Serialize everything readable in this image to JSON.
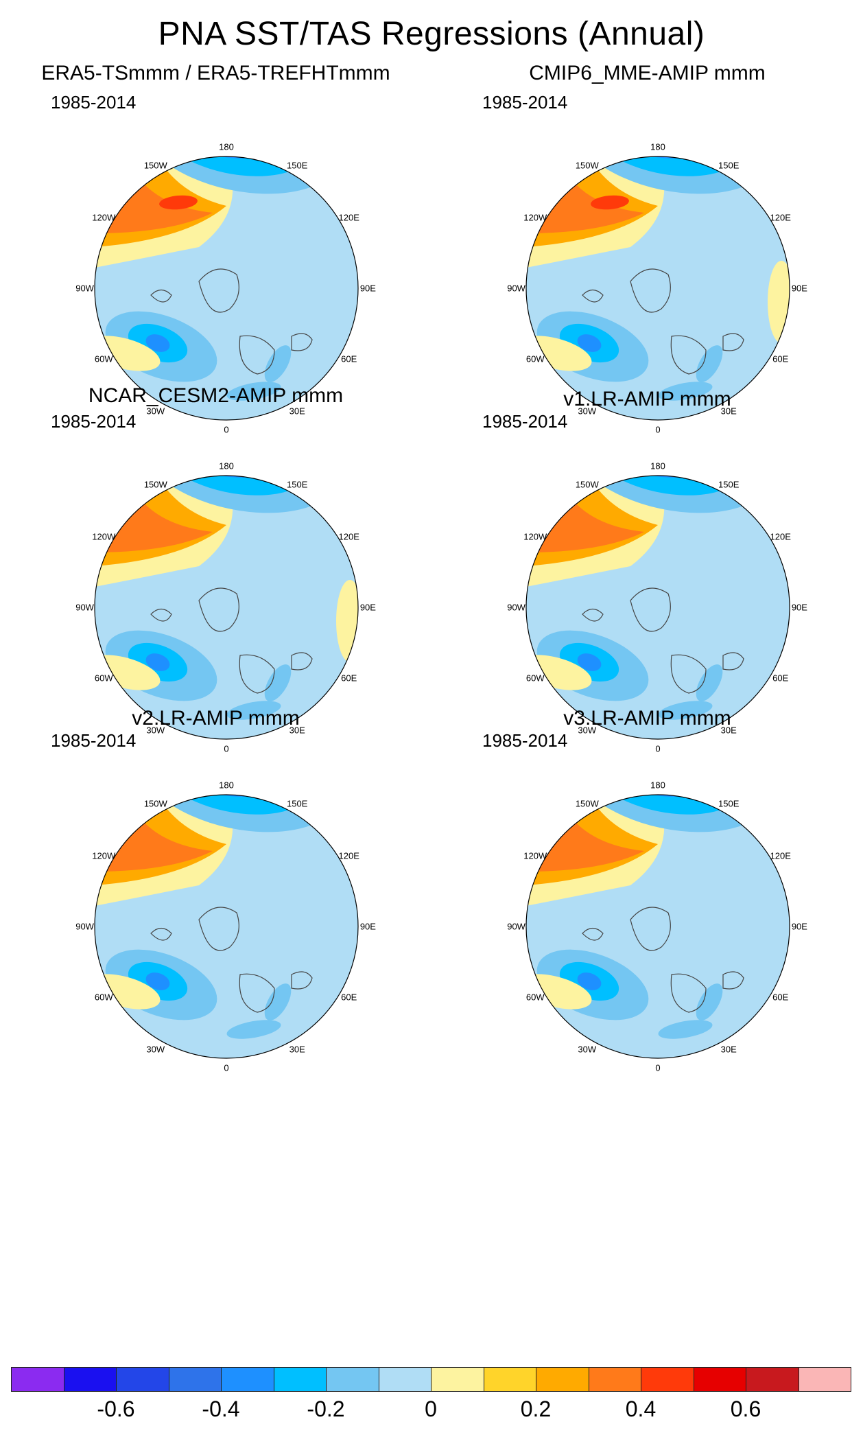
{
  "title": "PNA SST/TAS Regressions (Annual)",
  "panels": [
    {
      "name": "era5",
      "title": "ERA5-TSmmm / ERA5-TREFHTmmm",
      "period": "1985-2014",
      "variant": 0
    },
    {
      "name": "cmip6",
      "title": "CMIP6_MME-AMIP  mmm",
      "period": "1985-2014",
      "variant": 1
    },
    {
      "name": "cesm2",
      "title": "NCAR_CESM2-AMIP  mmm",
      "period": "1985-2014",
      "variant": 2
    },
    {
      "name": "v1",
      "title": "v1.LR-AMIP  mmm",
      "period": "1985-2014",
      "variant": 3
    },
    {
      "name": "v2",
      "title": "v2.LR-AMIP  mmm",
      "period": "1985-2014",
      "variant": 4
    },
    {
      "name": "v3",
      "title": "v3.LR-AMIP  mmm",
      "period": "1985-2014",
      "variant": 5
    }
  ],
  "longitude_labels": [
    "180",
    "150E",
    "120E",
    "90E",
    "60E",
    "30E",
    "0",
    "30W",
    "60W",
    "90W",
    "120W",
    "150W"
  ],
  "colorbar": {
    "colors": [
      "#8B2BF0",
      "#1A10F0",
      "#2346E8",
      "#2E73EA",
      "#1E90FF",
      "#00BFFF",
      "#74C6F2",
      "#B0DDF5",
      "#FDF3A0",
      "#FFD42A",
      "#FFAA00",
      "#FF7A1A",
      "#FF3A0A",
      "#E60000",
      "#C8191E",
      "#FAB6B6"
    ],
    "labels": [
      "-0.6",
      "-0.4",
      "-0.2",
      "0",
      "0.2",
      "0.4",
      "0.6"
    ],
    "label_values": [
      -0.6,
      -0.4,
      -0.2,
      0,
      0.2,
      0.4,
      0.6
    ]
  },
  "chart_data": {
    "type": "heatmap",
    "title": "PNA SST/TAS Regressions (Annual)",
    "projection": "north polar stereographic",
    "period": "1985-2014",
    "contour_levels": [
      -0.7,
      -0.6,
      -0.5,
      -0.4,
      -0.3,
      -0.2,
      -0.1,
      0,
      0.1,
      0.2,
      0.3,
      0.4,
      0.5,
      0.6,
      0.7
    ],
    "colorbar_range": [
      -0.8,
      0.8
    ],
    "panels": [
      "ERA5-TSmmm / ERA5-TREFHTmmm",
      "CMIP6_MME-AMIP  mmm",
      "NCAR_CESM2-AMIP  mmm",
      "v1.LR-AMIP  mmm",
      "v2.LR-AMIP  mmm",
      "v3.LR-AMIP  mmm"
    ]
  }
}
